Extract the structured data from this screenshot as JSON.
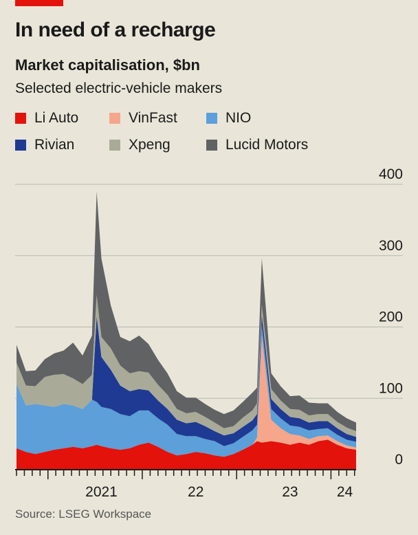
{
  "header": {
    "title": "In need of a recharge",
    "subtitle": "Market capitalisation, $bn",
    "subtitle2": "Selected electric-vehicle makers"
  },
  "source": "Source: LSEG Workspace",
  "colors": {
    "background": "#e9e6d9",
    "accent": "#e3120b"
  },
  "chart_data": {
    "type": "area",
    "stacked": true,
    "title": "In need of a recharge",
    "ylabel": "Market capitalisation, $bn",
    "ylim": [
      0,
      400
    ],
    "yticks": [
      0,
      100,
      200,
      300,
      400
    ],
    "x_tick_labels": [
      "2021",
      "22",
      "23",
      "24"
    ],
    "legend_placement": "top",
    "grid": true,
    "x": [
      2020.6,
      2020.7,
      2020.8,
      2020.9,
      2021.0,
      2021.1,
      2021.2,
      2021.3,
      2021.4,
      2021.45,
      2021.5,
      2021.6,
      2021.7,
      2021.8,
      2021.9,
      2022.0,
      2022.1,
      2022.2,
      2022.3,
      2022.4,
      2022.5,
      2022.6,
      2022.7,
      2022.8,
      2022.9,
      2023.0,
      2023.1,
      2023.15,
      2023.2,
      2023.3,
      2023.4,
      2023.5,
      2023.6,
      2023.7,
      2023.8,
      2023.9,
      2024.0,
      2024.1,
      2024.2
    ],
    "series": [
      {
        "name": "Li Auto",
        "color": "#e3120b",
        "values": [
          30,
          25,
          22,
          25,
          28,
          30,
          32,
          30,
          33,
          35,
          33,
          30,
          28,
          30,
          35,
          38,
          32,
          25,
          20,
          22,
          25,
          23,
          20,
          18,
          22,
          28,
          35,
          40,
          38,
          40,
          38,
          35,
          38,
          35,
          40,
          42,
          35,
          30,
          28
        ]
      },
      {
        "name": "VinFast",
        "color": "#f6a68b",
        "values": [
          0,
          0,
          0,
          0,
          0,
          0,
          0,
          0,
          0,
          0,
          0,
          0,
          0,
          0,
          0,
          0,
          0,
          0,
          0,
          0,
          0,
          0,
          0,
          0,
          0,
          0,
          0,
          5,
          150,
          30,
          20,
          15,
          10,
          8,
          7,
          6,
          5,
          4,
          3
        ]
      },
      {
        "name": "NIO",
        "color": "#5c9fd9",
        "values": [
          90,
          65,
          70,
          65,
          60,
          62,
          58,
          55,
          65,
          60,
          55,
          55,
          50,
          45,
          48,
          45,
          40,
          38,
          30,
          25,
          22,
          20,
          20,
          15,
          15,
          18,
          20,
          18,
          15,
          15,
          14,
          12,
          12,
          12,
          10,
          10,
          9,
          8,
          8
        ]
      },
      {
        "name": "Rivian",
        "color": "#1f3a93",
        "values": [
          0,
          0,
          0,
          0,
          0,
          0,
          0,
          0,
          0,
          120,
          70,
          55,
          40,
          35,
          30,
          28,
          25,
          22,
          20,
          18,
          20,
          18,
          14,
          15,
          14,
          14,
          14,
          15,
          14,
          14,
          13,
          12,
          12,
          11,
          11,
          10,
          9,
          8,
          7
        ]
      },
      {
        "name": "Xpeng",
        "color": "#a9ab98",
        "values": [
          30,
          28,
          25,
          40,
          45,
          42,
          38,
          35,
          35,
          30,
          28,
          30,
          28,
          25,
          25,
          25,
          22,
          20,
          15,
          14,
          14,
          13,
          12,
          10,
          10,
          13,
          14,
          15,
          14,
          14,
          12,
          11,
          12,
          10,
          10,
          10,
          9,
          9,
          8
        ]
      },
      {
        "name": "Lucid Motors",
        "color": "#616264",
        "values": [
          25,
          20,
          22,
          25,
          30,
          33,
          50,
          40,
          55,
          145,
          110,
          60,
          40,
          45,
          50,
          40,
          35,
          30,
          25,
          22,
          20,
          18,
          18,
          20,
          22,
          22,
          25,
          22,
          65,
          22,
          20,
          18,
          20,
          18,
          15,
          15,
          14,
          13,
          12
        ]
      }
    ]
  }
}
